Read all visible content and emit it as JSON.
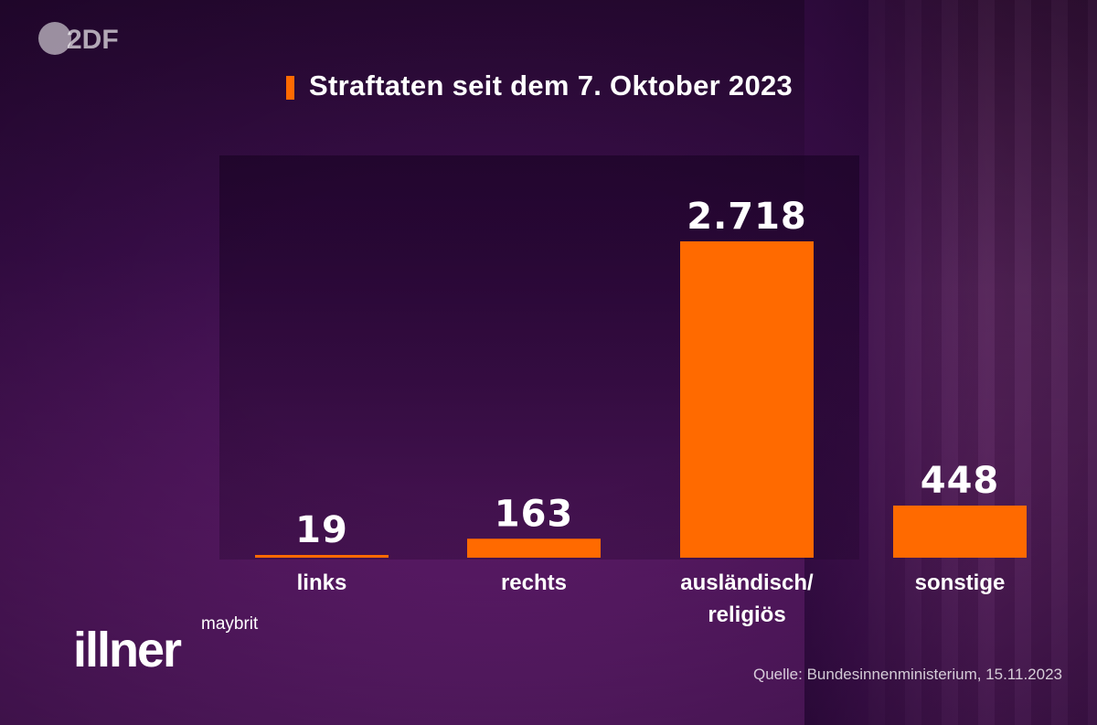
{
  "broadcaster": {
    "logo_text": "2DF"
  },
  "chart_data": {
    "type": "bar",
    "title": "Straftaten seit dem 7. Oktober 2023",
    "categories": [
      [
        "links"
      ],
      [
        "rechts"
      ],
      [
        "ausländisch/",
        "religiös"
      ],
      [
        "sonstige"
      ]
    ],
    "values": [
      19,
      163,
      2718,
      448
    ],
    "value_labels": [
      "19",
      "163",
      "2.718",
      "448"
    ],
    "ylim": [
      0,
      2718
    ],
    "grid": false,
    "legend": "none",
    "bar_color": "#ff6a00",
    "xlabel": "",
    "ylabel": ""
  },
  "show": {
    "name_small": "maybrit",
    "name_big": "illner"
  },
  "source": "Quelle: Bundesinnenministerium, 15.11.2023"
}
